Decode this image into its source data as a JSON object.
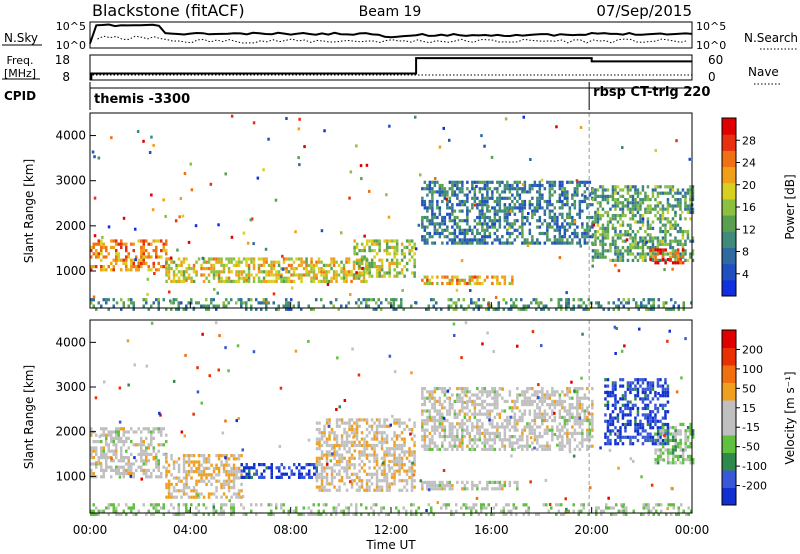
{
  "header": {
    "station": "Blackstone (fitACF)",
    "beam": "Beam 19",
    "date": "07/Sep/2015"
  },
  "summary": {
    "nsky_label": "N.Sky",
    "nsky_ticks": [
      "10^5",
      "10^0"
    ],
    "nsearch_label": "N.Search",
    "nsearch_ticks": [
      "10^5",
      "10^0"
    ],
    "freq_label_line1": "Freq.",
    "freq_label_line2": "[MHz]",
    "freq_ticks": [
      "18",
      "8"
    ],
    "nave_label": "Nave",
    "nave_ticks": [
      "60",
      "0"
    ],
    "cpid_label": "CPID",
    "cpid_segments": [
      {
        "text": "themis -3300",
        "start_hour": 0,
        "end_hour": 19.9
      },
      {
        "text": "rbsp CT-trig 220",
        "start_hour": 19.9,
        "end_hour": 24
      }
    ]
  },
  "axes": {
    "xlabel": "Time UT",
    "x_ticks": [
      "00:00",
      "04:00",
      "08:00",
      "12:00",
      "16:00",
      "20:00",
      "00:00"
    ],
    "xlim_hours": [
      0,
      24
    ],
    "ylabel": "Slant Range [km]",
    "y_ticks": [
      1000,
      2000,
      3000,
      4000
    ],
    "ylim_km": [
      180,
      4500
    ]
  },
  "chart_data": [
    {
      "type": "heatmap",
      "xlabel": "Time UT",
      "ylabel": "Slant Range [km]",
      "colorbar_label": "Power [dB]",
      "colorbar_ticks": [
        4,
        8,
        12,
        16,
        20,
        24,
        28
      ],
      "colorbar_range": [
        0,
        30
      ],
      "colors": [
        "#1030e0",
        "#2050c0",
        "#2f6aa0",
        "#3f8a7a",
        "#58a050",
        "#8cc040",
        "#d8d020",
        "#f0a018",
        "#f07014",
        "#e83010",
        "#e00000"
      ],
      "echo_regions": [
        {
          "t_start": 0.0,
          "t_end": 3.0,
          "r_min": 1000,
          "r_max": 1700,
          "power": 22
        },
        {
          "t_start": 3.0,
          "t_end": 11.0,
          "r_min": 750,
          "r_max": 1300,
          "power": 18
        },
        {
          "t_start": 10.5,
          "t_end": 12.9,
          "r_min": 900,
          "r_max": 1700,
          "power": 16
        },
        {
          "t_start": 13.2,
          "t_end": 16.8,
          "r_min": 700,
          "r_max": 900,
          "power": 20
        },
        {
          "t_start": 13.2,
          "t_end": 20.0,
          "r_min": 1600,
          "r_max": 3000,
          "power": 8
        },
        {
          "t_start": 20.0,
          "t_end": 24.0,
          "r_min": 1200,
          "r_max": 2900,
          "power": 12
        },
        {
          "t_start": 22.3,
          "t_end": 23.6,
          "r_min": 1200,
          "r_max": 1500,
          "power": 26
        },
        {
          "t_start": 0.0,
          "t_end": 24.0,
          "r_min": 180,
          "r_max": 400,
          "power": 10
        }
      ]
    },
    {
      "type": "heatmap",
      "xlabel": "Time UT",
      "ylabel": "Slant Range [km]",
      "colorbar_label": "Velocity [m s⁻¹]",
      "colorbar_ticks": [
        200,
        100,
        50,
        15,
        -15,
        -50,
        -100,
        -200
      ],
      "colorbar_range": [
        -250,
        250
      ],
      "colors": [
        "#1030d0",
        "#3858d8",
        "#2e8a4a",
        "#60c040",
        "#c0c0c0",
        "#c0c0c0",
        "#f0a020",
        "#f07010",
        "#e83000",
        "#e00000"
      ],
      "echo_regions": [
        {
          "t_start": 0.0,
          "t_end": 3.0,
          "r_min": 1000,
          "r_max": 2100,
          "velocity": 0
        },
        {
          "t_start": 3.0,
          "t_end": 6.0,
          "r_min": 500,
          "r_max": 1500,
          "velocity": 40
        },
        {
          "t_start": 6.0,
          "t_end": 9.0,
          "r_min": 1000,
          "r_max": 1300,
          "velocity": -200
        },
        {
          "t_start": 9.0,
          "t_end": 12.9,
          "r_min": 700,
          "r_max": 2300,
          "velocity": 30
        },
        {
          "t_start": 13.2,
          "t_end": 17.0,
          "r_min": 700,
          "r_max": 900,
          "velocity": 0
        },
        {
          "t_start": 13.2,
          "t_end": 20.0,
          "r_min": 1600,
          "r_max": 3000,
          "velocity": 0
        },
        {
          "t_start": 20.5,
          "t_end": 23.0,
          "r_min": 1700,
          "r_max": 3200,
          "velocity": -200
        },
        {
          "t_start": 22.5,
          "t_end": 24.0,
          "r_min": 1300,
          "r_max": 2200,
          "velocity": -60
        },
        {
          "t_start": 0.0,
          "t_end": 24.0,
          "r_min": 180,
          "r_max": 400,
          "velocity": -40
        }
      ]
    }
  ]
}
